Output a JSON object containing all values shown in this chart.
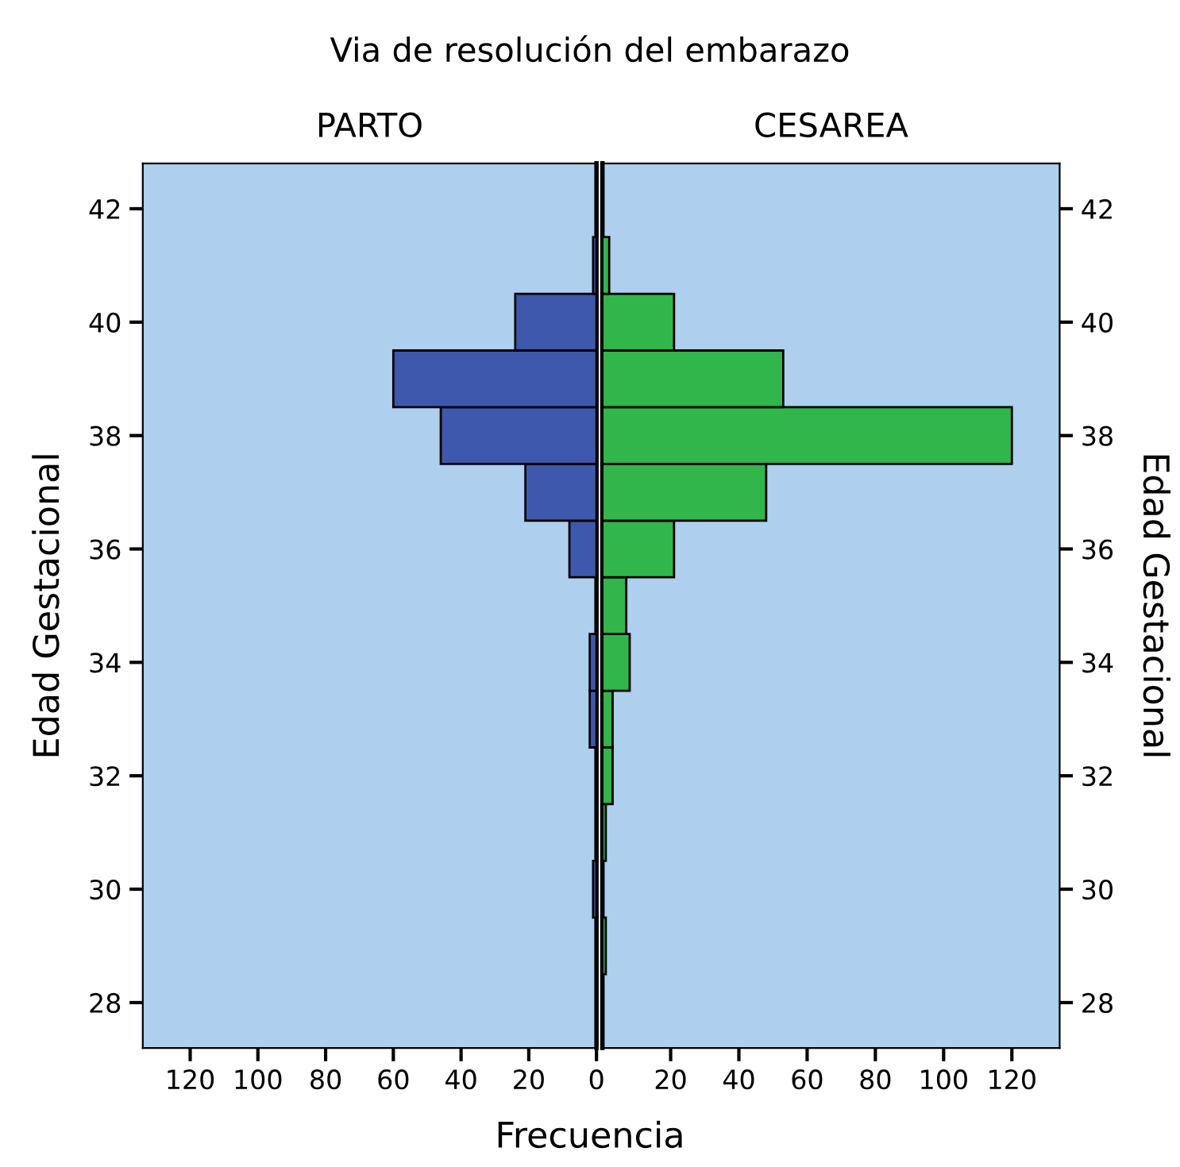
{
  "chart_data": [
    {
      "type": "histogram",
      "orientation": "horizontal",
      "title": "Via de resolución del embarazo",
      "subtitle": "PARTO",
      "xlabel": "Frecuencia",
      "ylabel": "Edad Gestacional",
      "bins": [
        28.5,
        29.5,
        30.5,
        31.5,
        32.5,
        33.5,
        34.5,
        35.5,
        36.5,
        37.5,
        38.5,
        39.5,
        40.5,
        41.5
      ],
      "values": [
        0,
        1,
        0,
        0,
        2,
        2,
        0,
        8,
        21,
        46,
        60,
        24,
        1
      ],
      "color": "#3e58ad",
      "xlim": [
        134,
        0
      ],
      "xticks": [
        120,
        100,
        80,
        60,
        40,
        20,
        0
      ],
      "ylim": [
        27.2,
        42.8
      ],
      "yticks": [
        28,
        30,
        32,
        34,
        36,
        38,
        40,
        42
      ],
      "grid": false
    },
    {
      "type": "histogram",
      "orientation": "horizontal",
      "subtitle": "CESAREA",
      "ylabel": "Edad Gestacional",
      "bins": [
        28.5,
        29.5,
        30.5,
        31.5,
        32.5,
        33.5,
        34.5,
        35.5,
        36.5,
        37.5,
        38.5,
        39.5,
        40.5,
        41.5
      ],
      "values": [
        1,
        0,
        1,
        3,
        3,
        8,
        7,
        21,
        48,
        120,
        53,
        21,
        2
      ],
      "color": "#30b64a",
      "xlim": [
        0,
        134
      ],
      "xticks": [
        20,
        40,
        60,
        80,
        100,
        120
      ],
      "ylim": [
        27.2,
        42.8
      ],
      "yticks": [
        28,
        30,
        32,
        34,
        36,
        38,
        40,
        42
      ],
      "grid": false
    }
  ]
}
